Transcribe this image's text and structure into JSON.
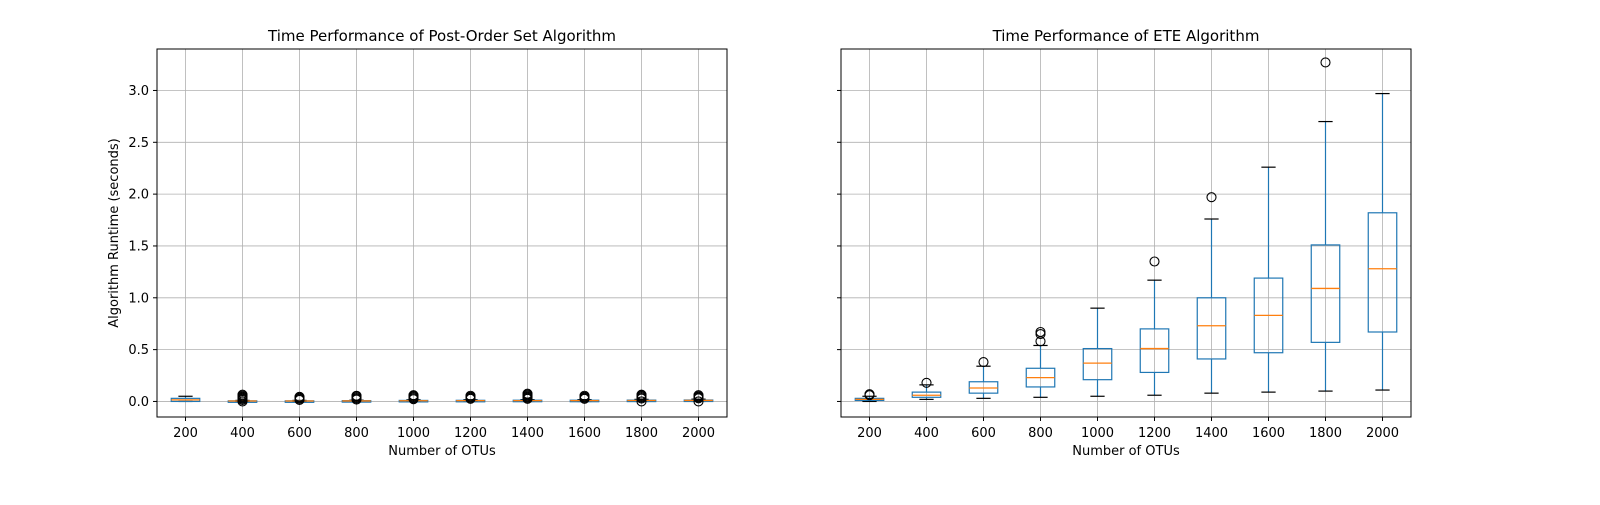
{
  "chart_data": [
    {
      "type": "box",
      "title": "Time Performance of Post-Order Set Algorithm",
      "xlabel": "Number of OTUs",
      "ylabel": "Algorithm Runtime (seconds)",
      "ylim": [
        -0.15,
        3.4
      ],
      "yticks": [
        0.0,
        0.5,
        1.0,
        1.5,
        2.0,
        2.5,
        3.0
      ],
      "ytick_labels": [
        "0.0",
        "0.5",
        "1.0",
        "1.5",
        "2.0",
        "2.5",
        "3.0"
      ],
      "grid": true,
      "categories": [
        "200",
        "400",
        "600",
        "800",
        "1000",
        "1200",
        "1400",
        "1600",
        "1800",
        "2000"
      ],
      "boxes": [
        {
          "whislo": 0.0,
          "q1": 0.0,
          "med": 0.015,
          "q3": 0.03,
          "whishi": 0.05,
          "fliers": []
        },
        {
          "whislo": 0.0,
          "q1": 0.002,
          "med": 0.004,
          "q3": 0.006,
          "whishi": 0.01,
          "fliers": [
            0.015,
            0.025,
            0.035,
            0.045,
            0.055,
            0.065,
            0.0
          ]
        },
        {
          "whislo": 0.0,
          "q1": 0.002,
          "med": 0.004,
          "q3": 0.006,
          "whishi": 0.01,
          "fliers": [
            0.015,
            0.025,
            0.035,
            0.045
          ]
        },
        {
          "whislo": 0.0,
          "q1": 0.002,
          "med": 0.005,
          "q3": 0.008,
          "whishi": 0.012,
          "fliers": [
            0.018,
            0.028,
            0.038,
            0.048,
            0.055
          ]
        },
        {
          "whislo": 0.0,
          "q1": 0.004,
          "med": 0.007,
          "q3": 0.01,
          "whishi": 0.016,
          "fliers": [
            0.022,
            0.032,
            0.042,
            0.052,
            0.06
          ]
        },
        {
          "whislo": 0.0,
          "q1": 0.005,
          "med": 0.008,
          "q3": 0.011,
          "whishi": 0.017,
          "fliers": [
            0.025,
            0.035,
            0.045,
            0.055
          ]
        },
        {
          "whislo": 0.0,
          "q1": 0.005,
          "med": 0.008,
          "q3": 0.012,
          "whishi": 0.018,
          "fliers": [
            0.025,
            0.035,
            0.045,
            0.055,
            0.065,
            0.075
          ]
        },
        {
          "whislo": 0.0,
          "q1": 0.005,
          "med": 0.008,
          "q3": 0.012,
          "whishi": 0.018,
          "fliers": [
            0.025,
            0.035,
            0.045,
            0.055
          ]
        },
        {
          "whislo": 0.0,
          "q1": 0.005,
          "med": 0.009,
          "q3": 0.013,
          "whishi": 0.02,
          "fliers": [
            0.0,
            0.028,
            0.038,
            0.048,
            0.058,
            0.065
          ]
        },
        {
          "whislo": 0.0,
          "q1": 0.006,
          "med": 0.01,
          "q3": 0.014,
          "whishi": 0.022,
          "fliers": [
            0.0,
            0.03,
            0.04,
            0.05,
            0.06
          ]
        }
      ]
    },
    {
      "type": "box",
      "title": "Time Performance of ETE Algorithm",
      "xlabel": "Number of OTUs",
      "ylabel": "",
      "ylim": [
        -0.15,
        3.4
      ],
      "yticks": [
        0.0,
        0.5,
        1.0,
        1.5,
        2.0,
        2.5,
        3.0
      ],
      "ytick_labels": [],
      "grid": true,
      "categories": [
        "200",
        "400",
        "600",
        "800",
        "1000",
        "1200",
        "1400",
        "1600",
        "1800",
        "2000"
      ],
      "boxes": [
        {
          "whislo": 0.0,
          "q1": 0.01,
          "med": 0.02,
          "q3": 0.03,
          "whishi": 0.05,
          "fliers": [
            0.06,
            0.07
          ]
        },
        {
          "whislo": 0.02,
          "q1": 0.04,
          "med": 0.06,
          "q3": 0.09,
          "whishi": 0.16,
          "fliers": [
            0.18
          ]
        },
        {
          "whislo": 0.03,
          "q1": 0.08,
          "med": 0.13,
          "q3": 0.19,
          "whishi": 0.34,
          "fliers": [
            0.38
          ]
        },
        {
          "whislo": 0.04,
          "q1": 0.14,
          "med": 0.23,
          "q3": 0.32,
          "whishi": 0.54,
          "fliers": [
            0.58,
            0.65,
            0.67
          ]
        },
        {
          "whislo": 0.05,
          "q1": 0.21,
          "med": 0.37,
          "q3": 0.51,
          "whishi": 0.9,
          "fliers": []
        },
        {
          "whislo": 0.06,
          "q1": 0.28,
          "med": 0.51,
          "q3": 0.7,
          "whishi": 1.17,
          "fliers": [
            1.35
          ]
        },
        {
          "whislo": 0.08,
          "q1": 0.41,
          "med": 0.73,
          "q3": 1.0,
          "whishi": 1.76,
          "fliers": [
            1.97
          ]
        },
        {
          "whislo": 0.09,
          "q1": 0.47,
          "med": 0.83,
          "q3": 1.19,
          "whishi": 2.26,
          "fliers": []
        },
        {
          "whislo": 0.1,
          "q1": 0.57,
          "med": 1.09,
          "q3": 1.51,
          "whishi": 2.7,
          "fliers": [
            3.27
          ]
        },
        {
          "whislo": 0.11,
          "q1": 0.67,
          "med": 1.28,
          "q3": 1.82,
          "whishi": 2.97,
          "fliers": []
        }
      ]
    }
  ],
  "colors": {
    "box": "#1f77b4",
    "median": "#ff7f0e",
    "whisker": "#000000",
    "flier": "#000000",
    "grid": "#b0b0b0",
    "axes": "#000000"
  }
}
